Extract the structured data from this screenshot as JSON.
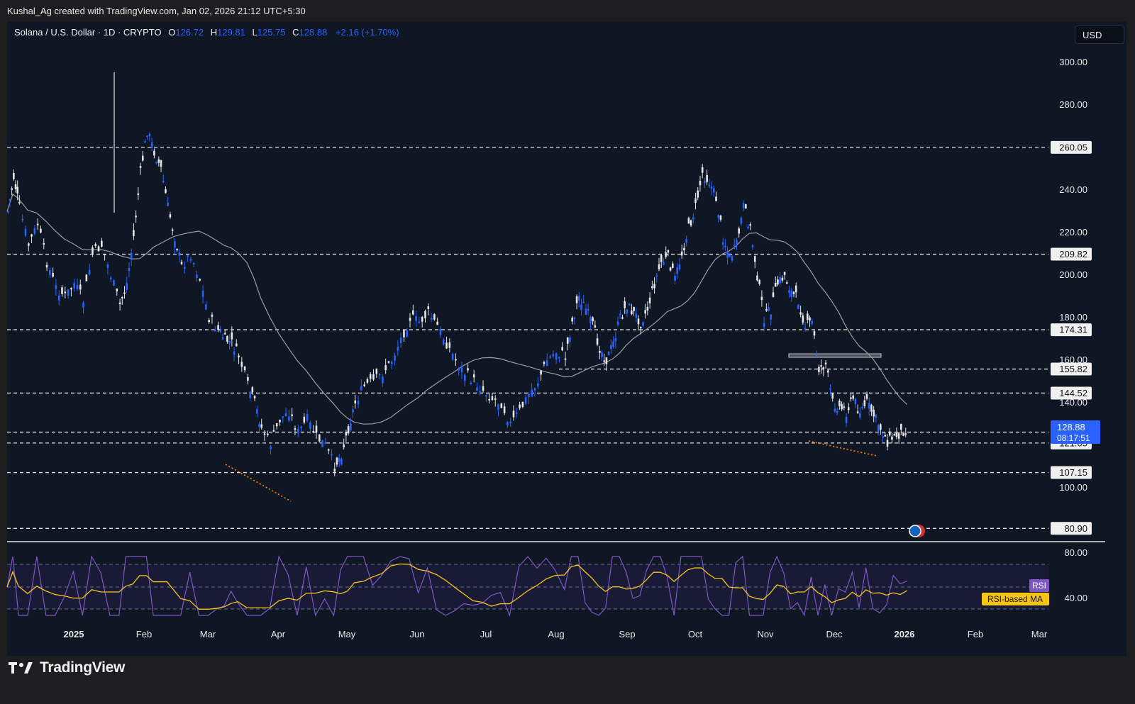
{
  "caption": "Kushal_Ag created with TradingView.com, Jan 02, 2026 21:12 UTC+5:30",
  "legend": {
    "symbol": "Solana / U.S. Dollar · 1D · CRYPTO",
    "open_label": "O",
    "open": "126.72",
    "high_label": "H",
    "high": "129.81",
    "low_label": "L",
    "low": "125.75",
    "close_label": "C",
    "close": "128.88",
    "change": "+2.16 (+1.70%)"
  },
  "currency": "USD",
  "brand": "TradingView",
  "colors": {
    "background": "#0f1624",
    "up": "#2962ff",
    "down": "#e6e6e6",
    "rsi": "#7e57c2",
    "rsi_ma": "#f5c518",
    "ma": "#9e9e9e",
    "orange": "#f57c00"
  },
  "chart_data": {
    "type": "candlestick",
    "y_ticks": [
      "300.00",
      "280.00",
      "240.00",
      "220.00",
      "200.00",
      "180.00",
      "160.00",
      "140.00",
      "100.00"
    ],
    "x_ticks": [
      "2025",
      "Feb",
      "Mar",
      "Apr",
      "May",
      "Jun",
      "Jul",
      "Aug",
      "Sep",
      "Oct",
      "Nov",
      "Dec",
      "2026",
      "Feb",
      "Mar"
    ],
    "levels": [
      "260.05",
      "209.82",
      "174.31",
      "155.82",
      "144.52",
      "126.15",
      "121.05",
      "107.15",
      "80.90"
    ],
    "last_price": "128.88",
    "countdown": "08:17:51",
    "rsi": {
      "ticks": [
        "80.00",
        "40.00"
      ],
      "label": "RSI",
      "ma_label": "RSI-based MA"
    },
    "series_note": "",
    "price_path": [
      [
        0,
        230
      ],
      [
        5,
        246
      ],
      [
        10,
        232
      ],
      [
        18,
        214
      ],
      [
        26,
        224
      ],
      [
        34,
        206
      ],
      [
        42,
        194
      ],
      [
        50,
        190
      ],
      [
        58,
        196
      ],
      [
        66,
        188
      ],
      [
        74,
        210
      ],
      [
        82,
        214
      ],
      [
        90,
        200
      ],
      [
        98,
        186
      ],
      [
        104,
        196
      ],
      [
        110,
        218
      ],
      [
        116,
        248
      ],
      [
        122,
        268
      ],
      [
        128,
        258
      ],
      [
        134,
        250
      ],
      [
        140,
        232
      ],
      [
        146,
        218
      ],
      [
        152,
        204
      ],
      [
        160,
        210
      ],
      [
        168,
        198
      ],
      [
        176,
        180
      ],
      [
        184,
        174
      ],
      [
        190,
        170
      ],
      [
        196,
        168
      ],
      [
        202,
        162
      ],
      [
        210,
        148
      ],
      [
        216,
        140
      ],
      [
        222,
        128
      ],
      [
        230,
        121
      ],
      [
        238,
        132
      ],
      [
        246,
        136
      ],
      [
        254,
        126
      ],
      [
        262,
        132
      ],
      [
        270,
        124
      ],
      [
        278,
        120
      ],
      [
        286,
        110
      ],
      [
        292,
        116
      ],
      [
        298,
        128
      ],
      [
        304,
        140
      ],
      [
        312,
        148
      ],
      [
        320,
        150
      ],
      [
        328,
        154
      ],
      [
        336,
        160
      ],
      [
        344,
        170
      ],
      [
        352,
        180
      ],
      [
        360,
        178
      ],
      [
        368,
        182
      ],
      [
        376,
        176
      ],
      [
        384,
        168
      ],
      [
        392,
        160
      ],
      [
        400,
        154
      ],
      [
        408,
        150
      ],
      [
        416,
        146
      ],
      [
        424,
        142
      ],
      [
        432,
        140
      ],
      [
        440,
        130
      ],
      [
        448,
        136
      ],
      [
        456,
        144
      ],
      [
        464,
        150
      ],
      [
        472,
        160
      ],
      [
        480,
        164
      ],
      [
        488,
        162
      ],
      [
        494,
        178
      ],
      [
        500,
        190
      ],
      [
        506,
        184
      ],
      [
        512,
        176
      ],
      [
        518,
        166
      ],
      [
        524,
        160
      ],
      [
        530,
        168
      ],
      [
        536,
        180
      ],
      [
        542,
        186
      ],
      [
        548,
        182
      ],
      [
        554,
        178
      ],
      [
        560,
        184
      ],
      [
        566,
        196
      ],
      [
        572,
        206
      ],
      [
        578,
        208
      ],
      [
        584,
        198
      ],
      [
        590,
        210
      ],
      [
        596,
        222
      ],
      [
        602,
        232
      ],
      [
        608,
        248
      ],
      [
        614,
        244
      ],
      [
        620,
        236
      ],
      [
        626,
        218
      ],
      [
        632,
        208
      ],
      [
        638,
        214
      ],
      [
        644,
        232
      ],
      [
        650,
        222
      ],
      [
        656,
        200
      ],
      [
        662,
        180
      ],
      [
        668,
        184
      ],
      [
        674,
        196
      ],
      [
        680,
        200
      ],
      [
        686,
        192
      ],
      [
        692,
        188
      ],
      [
        698,
        176
      ],
      [
        704,
        178
      ],
      [
        710,
        156
      ],
      [
        716,
        158
      ],
      [
        722,
        140
      ],
      [
        728,
        138
      ],
      [
        734,
        136
      ],
      [
        740,
        142
      ],
      [
        746,
        136
      ],
      [
        752,
        140
      ],
      [
        758,
        134
      ],
      [
        764,
        128
      ],
      [
        770,
        122
      ],
      [
        776,
        124
      ],
      [
        782,
        126
      ],
      [
        788,
        128.88
      ]
    ]
  }
}
